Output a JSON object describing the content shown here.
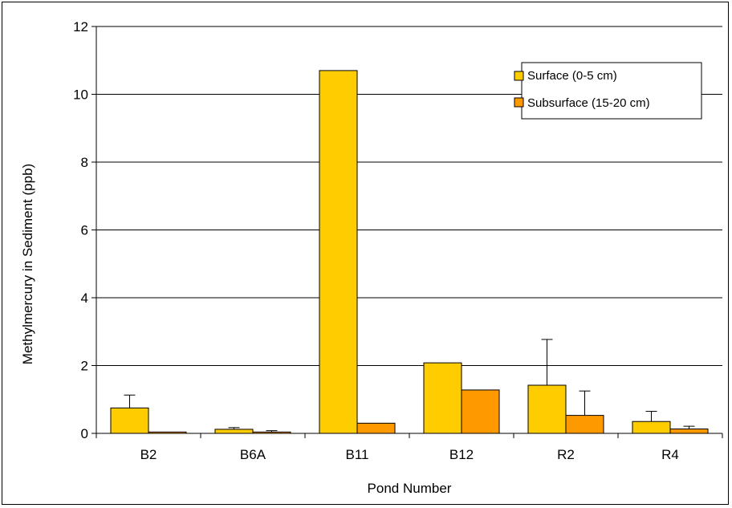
{
  "chart_data": {
    "type": "bar",
    "xlabel": "Pond Number",
    "ylabel": "Methylmercury in Sediment (ppb)",
    "ylim": [
      0,
      12
    ],
    "yticks": [
      0,
      2,
      4,
      6,
      8,
      10,
      12
    ],
    "grid": true,
    "legend_position": "top-right",
    "categories": [
      "B2",
      "B6A",
      "B11",
      "B12",
      "R2",
      "R4"
    ],
    "series": [
      {
        "name": "Surface (0-5 cm)",
        "color": "#FFCC00",
        "values": [
          0.75,
          0.12,
          10.7,
          2.08,
          1.42,
          0.35
        ],
        "error_upper": [
          0.38,
          0.05,
          null,
          null,
          1.35,
          0.3
        ]
      },
      {
        "name": "Subsurface (15-20 cm)",
        "color": "#FF9900",
        "values": [
          0.04,
          0.04,
          0.3,
          1.28,
          0.53,
          0.13
        ],
        "error_upper": [
          null,
          0.04,
          null,
          null,
          0.72,
          0.08
        ]
      }
    ]
  }
}
